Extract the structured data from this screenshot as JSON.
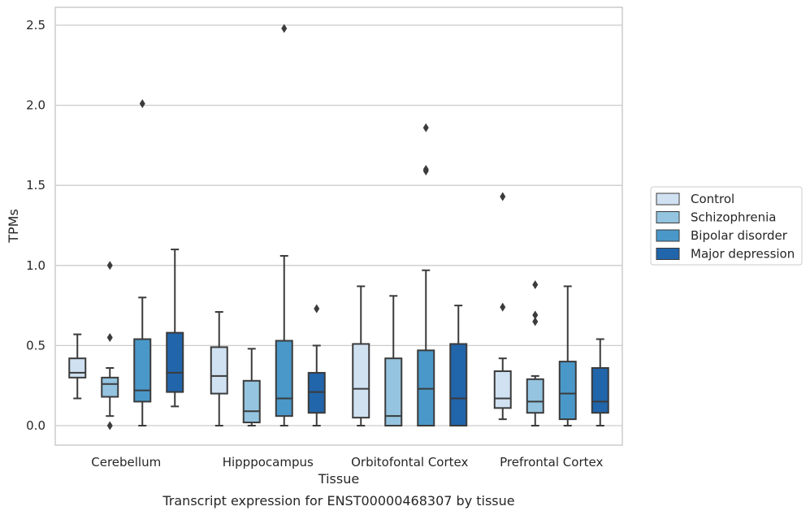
{
  "chart_data": {
    "type": "box",
    "caption": "Transcript expression for ENST00000468307 by tissue",
    "xlabel": "Tissue",
    "ylabel": "TPMs",
    "ylim": [
      -0.12,
      2.62
    ],
    "yticks": [
      0.0,
      0.5,
      1.0,
      1.5,
      2.0,
      2.5
    ],
    "ytick_labels": [
      "0.0",
      "0.5",
      "1.0",
      "1.5",
      "2.0",
      "2.5"
    ],
    "grid": true,
    "legend_position": "right",
    "categories": [
      "Cerebellum",
      "Hipppocampus",
      "Orbitofontal Cortex",
      "Prefrontal Cortex"
    ],
    "series": [
      {
        "name": "Control",
        "color": "#d0e1f2",
        "boxes": [
          {
            "whisker_low": 0.17,
            "q1": 0.3,
            "median": 0.33,
            "q3": 0.42,
            "whisker_high": 0.57,
            "outliers": []
          },
          {
            "whisker_low": 0.0,
            "q1": 0.2,
            "median": 0.31,
            "q3": 0.49,
            "whisker_high": 0.71,
            "outliers": []
          },
          {
            "whisker_low": 0.0,
            "q1": 0.05,
            "median": 0.23,
            "q3": 0.51,
            "whisker_high": 0.87,
            "outliers": []
          },
          {
            "whisker_low": 0.04,
            "q1": 0.11,
            "median": 0.17,
            "q3": 0.34,
            "whisker_high": 0.42,
            "outliers": [
              0.74,
              1.43
            ]
          }
        ]
      },
      {
        "name": "Schizophrenia",
        "color": "#94c4df",
        "boxes": [
          {
            "whisker_low": 0.06,
            "q1": 0.18,
            "median": 0.26,
            "q3": 0.3,
            "whisker_high": 0.36,
            "outliers": [
              0.0,
              0.55,
              1.0
            ]
          },
          {
            "whisker_low": 0.0,
            "q1": 0.02,
            "median": 0.09,
            "q3": 0.28,
            "whisker_high": 0.48,
            "outliers": []
          },
          {
            "whisker_low": 0.0,
            "q1": 0.0,
            "median": 0.06,
            "q3": 0.42,
            "whisker_high": 0.81,
            "outliers": []
          },
          {
            "whisker_low": 0.0,
            "q1": 0.08,
            "median": 0.15,
            "q3": 0.29,
            "whisker_high": 0.31,
            "outliers": [
              0.65,
              0.69,
              0.88
            ]
          }
        ]
      },
      {
        "name": "Bipolar disorder",
        "color": "#4a98c9",
        "boxes": [
          {
            "whisker_low": 0.0,
            "q1": 0.15,
            "median": 0.22,
            "q3": 0.54,
            "whisker_high": 0.8,
            "outliers": [
              2.01
            ]
          },
          {
            "whisker_low": 0.0,
            "q1": 0.06,
            "median": 0.17,
            "q3": 0.53,
            "whisker_high": 1.06,
            "outliers": [
              2.48
            ]
          },
          {
            "whisker_low": 0.0,
            "q1": 0.0,
            "median": 0.23,
            "q3": 0.47,
            "whisker_high": 0.97,
            "outliers": [
              1.59,
              1.6,
              1.86
            ]
          },
          {
            "whisker_low": 0.0,
            "q1": 0.04,
            "median": 0.2,
            "q3": 0.4,
            "whisker_high": 0.87,
            "outliers": []
          }
        ]
      },
      {
        "name": "Major depression",
        "color": "#2165ab",
        "boxes": [
          {
            "whisker_low": 0.12,
            "q1": 0.21,
            "median": 0.33,
            "q3": 0.58,
            "whisker_high": 1.1,
            "outliers": []
          },
          {
            "whisker_low": 0.0,
            "q1": 0.08,
            "median": 0.21,
            "q3": 0.33,
            "whisker_high": 0.5,
            "outliers": [
              0.73
            ]
          },
          {
            "whisker_low": 0.0,
            "q1": 0.0,
            "median": 0.17,
            "q3": 0.51,
            "whisker_high": 0.75,
            "outliers": []
          },
          {
            "whisker_low": 0.0,
            "q1": 0.08,
            "median": 0.15,
            "q3": 0.36,
            "whisker_high": 0.54,
            "outliers": []
          }
        ]
      }
    ]
  }
}
